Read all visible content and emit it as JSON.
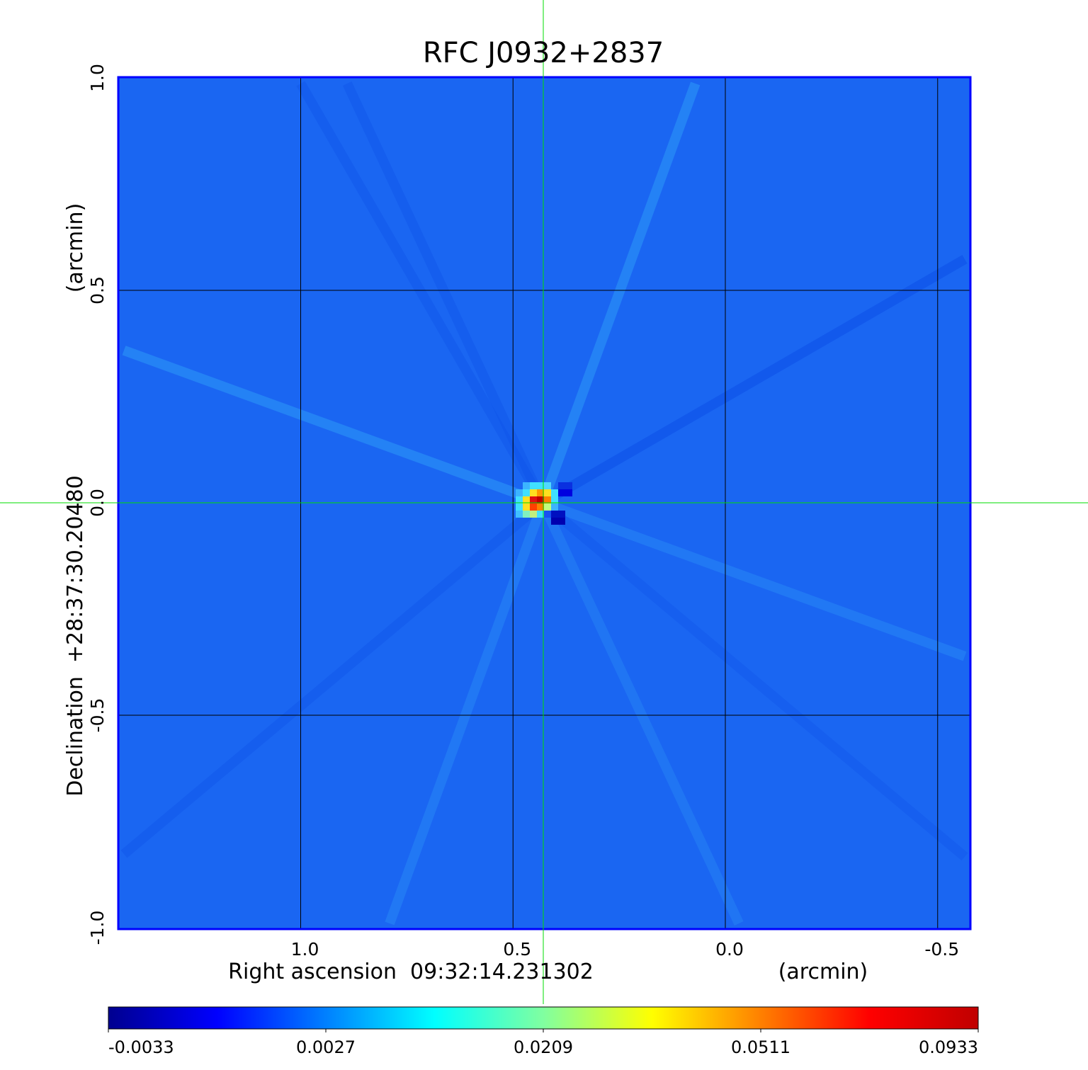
{
  "chart_data": {
    "type": "heatmap",
    "title": "RFC J0932+2837",
    "title_color": "#0000ee",
    "xlabel": "Right ascension  09:32:14.231302",
    "xunit": "(arcmin)",
    "ylabel": "Declination  +28:37:30.20480",
    "yunit": "(arcmin)",
    "x_ticks": [
      "1.0",
      "0.5",
      "0.0",
      "-0.5"
    ],
    "x_tick_values": [
      1.0,
      0.5,
      0.0,
      -0.5
    ],
    "y_ticks": [
      "1.0",
      "0.5",
      "0.0",
      "-0.5",
      "-1.0"
    ],
    "y_tick_values": [
      1.0,
      0.5,
      0.0,
      -0.5,
      -1.0
    ],
    "xlim": [
      1.43,
      -0.58
    ],
    "ylim": [
      -1.0,
      1.0
    ],
    "grid": true,
    "crosshair_color": "#00dd00",
    "colormap": "jet",
    "background_color": "#1a66f2",
    "colorbar": {
      "ticks": [
        "-0.0033",
        "0.0027",
        "0.0209",
        "0.0511",
        "0.0933"
      ],
      "stops": [
        "#00008f",
        "#0000ff",
        "#0080ff",
        "#00ffff",
        "#80ffa0",
        "#ffff00",
        "#ff8000",
        "#ff0000",
        "#c00000"
      ]
    },
    "source_peak": {
      "x": 0.43,
      "y": 0.0,
      "cells": [
        [
          "#1a66f2",
          "#3cb4ff",
          "#40e0ff",
          "#40e0ff",
          "#50d8ff",
          "#1a66f2",
          "#0a30e0",
          "#0a30e0"
        ],
        [
          "#3cb4ff",
          "#40e0ff",
          "#ffe020",
          "#ff9a00",
          "#ffe020",
          "#40e0ff",
          "#0000e0",
          "#0000e0"
        ],
        [
          "#40e0ff",
          "#ffe020",
          "#e01010",
          "#c00000",
          "#ff8000",
          "#40e0ff",
          "#1a66f2",
          "#1a66f2"
        ],
        [
          "#40e0ff",
          "#ffe020",
          "#ff4000",
          "#ff8000",
          "#c0ff80",
          "#3cb4ff",
          "#1a66f2",
          "#1a66f2"
        ],
        [
          "#40c0ff",
          "#80f0c0",
          "#c0f080",
          "#40e0ff",
          "#1a50f0",
          "#0010c0",
          "#0010c0",
          "#1a66f2"
        ],
        [
          "#1a66f2",
          "#1a66f2",
          "#1a66f2",
          "#1a66f2",
          "#1a66f2",
          "#0000b0",
          "#0000b0",
          "#1a66f2"
        ]
      ]
    }
  }
}
